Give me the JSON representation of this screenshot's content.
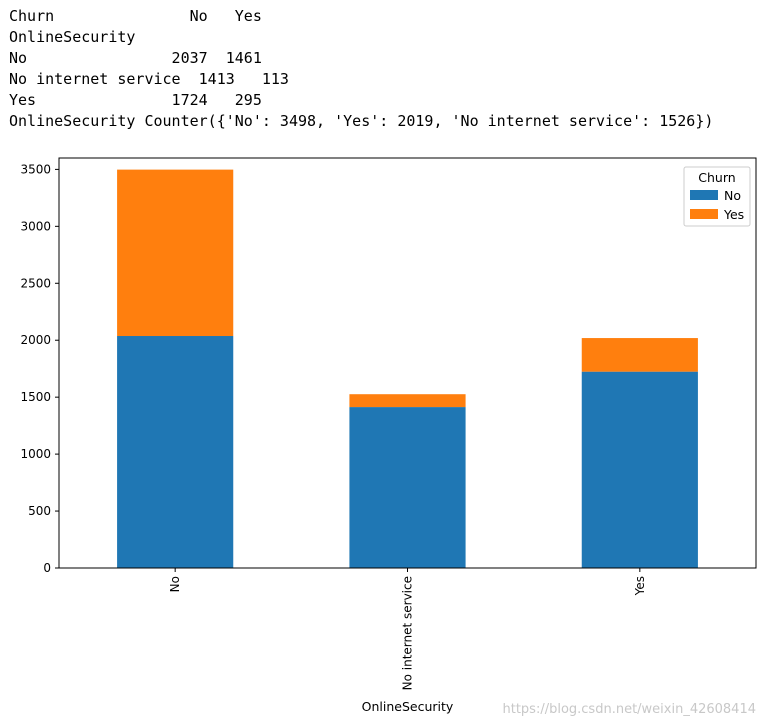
{
  "output": {
    "lines": [
      "Churn               No   Yes",
      "OnlineSecurity",
      "No                2037  1461",
      "No internet service  1413   113",
      "Yes               1724   295",
      "OnlineSecurity Counter({'No': 3498, 'Yes': 2019, 'No internet service': 1526})"
    ]
  },
  "chart_data": {
    "type": "bar",
    "stacked": true,
    "categories": [
      "No",
      "No internet service",
      "Yes"
    ],
    "series": [
      {
        "name": "No",
        "values": [
          2037,
          1413,
          1724
        ],
        "color": "#1f77b4"
      },
      {
        "name": "Yes",
        "values": [
          1461,
          113,
          295
        ],
        "color": "#ff7f0e"
      }
    ],
    "ylim": [
      0,
      3600
    ],
    "yticks": [
      0,
      500,
      1000,
      1500,
      2000,
      2500,
      3000,
      3500
    ],
    "xlabel": "OnlineSecurity",
    "ylabel": "",
    "legend_title": "Churn",
    "legend_position": "top-right",
    "grid": false
  },
  "watermark": "https://blog.csdn.net/weixin_42608414"
}
